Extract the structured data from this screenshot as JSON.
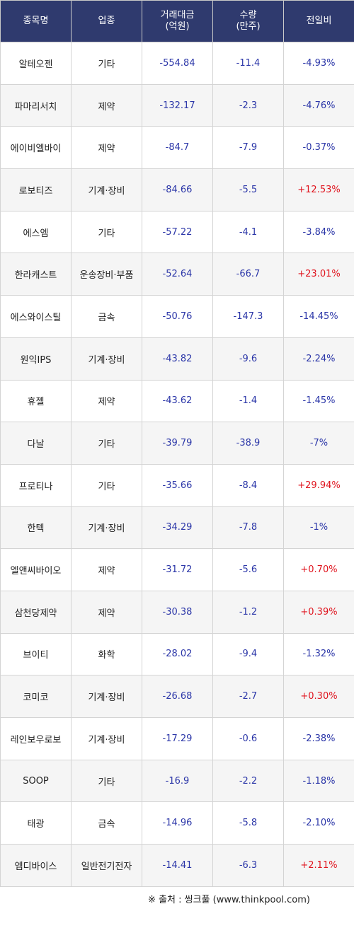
{
  "columns": [
    {
      "label": "종목명"
    },
    {
      "label": "업종"
    },
    {
      "label": "거래대금\n(억원)"
    },
    {
      "label": "수량\n(만주)"
    },
    {
      "label": "전일비"
    }
  ],
  "rows": [
    {
      "name": "알테오젠",
      "sector": "기타",
      "amount": "-554.84",
      "volume": "-11.4",
      "change": "-4.93%"
    },
    {
      "name": "파마리서치",
      "sector": "제약",
      "amount": "-132.17",
      "volume": "-2.3",
      "change": "-4.76%"
    },
    {
      "name": "에이비엘바이",
      "sector": "제약",
      "amount": "-84.7",
      "volume": "-7.9",
      "change": "-0.37%"
    },
    {
      "name": "로보티즈",
      "sector": "기계·장비",
      "amount": "-84.66",
      "volume": "-5.5",
      "change": "+12.53%"
    },
    {
      "name": "에스엠",
      "sector": "기타",
      "amount": "-57.22",
      "volume": "-4.1",
      "change": "-3.84%"
    },
    {
      "name": "한라캐스트",
      "sector": "운송장비·부품",
      "amount": "-52.64",
      "volume": "-66.7",
      "change": "+23.01%"
    },
    {
      "name": "에스와이스틸",
      "sector": "금속",
      "amount": "-50.76",
      "volume": "-147.3",
      "change": "-14.45%"
    },
    {
      "name": "원익IPS",
      "sector": "기계·장비",
      "amount": "-43.82",
      "volume": "-9.6",
      "change": "-2.24%"
    },
    {
      "name": "휴젤",
      "sector": "제약",
      "amount": "-43.62",
      "volume": "-1.4",
      "change": "-1.45%"
    },
    {
      "name": "다날",
      "sector": "기타",
      "amount": "-39.79",
      "volume": "-38.9",
      "change": "-7%"
    },
    {
      "name": "프로티나",
      "sector": "기타",
      "amount": "-35.66",
      "volume": "-8.4",
      "change": "+29.94%"
    },
    {
      "name": "한텍",
      "sector": "기계·장비",
      "amount": "-34.29",
      "volume": "-7.8",
      "change": "-1%"
    },
    {
      "name": "엘앤씨바이오",
      "sector": "제약",
      "amount": "-31.72",
      "volume": "-5.6",
      "change": "+0.70%"
    },
    {
      "name": "삼천당제약",
      "sector": "제약",
      "amount": "-30.38",
      "volume": "-1.2",
      "change": "+0.39%"
    },
    {
      "name": "브이티",
      "sector": "화학",
      "amount": "-28.02",
      "volume": "-9.4",
      "change": "-1.32%"
    },
    {
      "name": "코미코",
      "sector": "기계·장비",
      "amount": "-26.68",
      "volume": "-2.7",
      "change": "+0.30%"
    },
    {
      "name": "레인보우로보",
      "sector": "기계·장비",
      "amount": "-17.29",
      "volume": "-0.6",
      "change": "-2.38%"
    },
    {
      "name": "SOOP",
      "sector": "기타",
      "amount": "-16.9",
      "volume": "-2.2",
      "change": "-1.18%"
    },
    {
      "name": "태광",
      "sector": "금속",
      "amount": "-14.96",
      "volume": "-5.8",
      "change": "-2.10%"
    },
    {
      "name": "엠디바이스",
      "sector": "일반전기전자",
      "amount": "-14.41",
      "volume": "-6.3",
      "change": "+2.11%"
    }
  ],
  "source": "※ 출처 : 씽크풀 (www.thinkpool.com)",
  "colors": {
    "header_bg": "#2f3a6e",
    "number_blue": "#2b36a8",
    "positive_red": "#e0141e"
  }
}
